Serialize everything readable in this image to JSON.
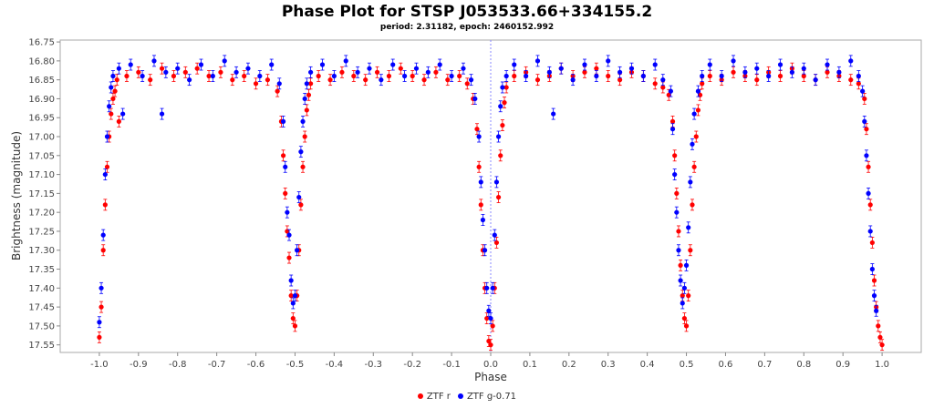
{
  "chart_data": {
    "type": "scatter",
    "title": "Phase Plot for STSP J053533.66+334155.2",
    "subtitle": "period: 2.31182, epoch: 2460152.992",
    "xlabel": "Phase",
    "ylabel": "Brightness (magnitude)",
    "xlim": [
      -1.1,
      1.1
    ],
    "ylim": [
      17.57,
      16.745
    ],
    "y_inverted": true,
    "x_ticks": [
      "-1.0",
      "-0.9",
      "-0.8",
      "-0.7",
      "-0.6",
      "-0.5",
      "-0.4",
      "-0.3",
      "-0.2",
      "-0.1",
      "0.0",
      "0.1",
      "0.2",
      "0.3",
      "0.4",
      "0.5",
      "0.6",
      "0.7",
      "0.8",
      "0.9",
      "1.0"
    ],
    "y_ticks": [
      "16.75",
      "16.80",
      "16.85",
      "16.90",
      "16.95",
      "17.00",
      "17.05",
      "17.10",
      "17.15",
      "17.20",
      "17.25",
      "17.30",
      "17.35",
      "17.40",
      "17.45",
      "17.50",
      "17.55"
    ],
    "vertical_marker_x": 0.0,
    "grid": false,
    "legend_position": "bottom-center",
    "series": [
      {
        "name": "ZTF r",
        "color": "#ff0000",
        "points": [
          [
            -1.0,
            17.53
          ],
          [
            -0.995,
            17.45
          ],
          [
            -0.99,
            17.3
          ],
          [
            -0.985,
            17.18
          ],
          [
            -0.98,
            17.08
          ],
          [
            -0.975,
            17.0
          ],
          [
            -0.97,
            16.94
          ],
          [
            -0.965,
            16.9
          ],
          [
            -0.96,
            16.88
          ],
          [
            -0.955,
            16.85
          ],
          [
            -0.95,
            16.96
          ],
          [
            -0.93,
            16.84
          ],
          [
            -0.9,
            16.83
          ],
          [
            -0.87,
            16.85
          ],
          [
            -0.84,
            16.82
          ],
          [
            -0.81,
            16.84
          ],
          [
            -0.78,
            16.83
          ],
          [
            -0.75,
            16.82
          ],
          [
            -0.72,
            16.84
          ],
          [
            -0.69,
            16.83
          ],
          [
            -0.66,
            16.85
          ],
          [
            -0.63,
            16.84
          ],
          [
            -0.6,
            16.86
          ],
          [
            -0.57,
            16.85
          ],
          [
            -0.545,
            16.88
          ],
          [
            -0.535,
            16.96
          ],
          [
            -0.53,
            17.05
          ],
          [
            -0.525,
            17.15
          ],
          [
            -0.52,
            17.25
          ],
          [
            -0.515,
            17.32
          ],
          [
            -0.51,
            17.42
          ],
          [
            -0.505,
            17.48
          ],
          [
            -0.5,
            17.5
          ],
          [
            -0.495,
            17.42
          ],
          [
            -0.49,
            17.3
          ],
          [
            -0.485,
            17.18
          ],
          [
            -0.48,
            17.08
          ],
          [
            -0.475,
            17.0
          ],
          [
            -0.47,
            16.93
          ],
          [
            -0.465,
            16.89
          ],
          [
            -0.46,
            16.86
          ],
          [
            -0.44,
            16.84
          ],
          [
            -0.41,
            16.85
          ],
          [
            -0.38,
            16.83
          ],
          [
            -0.35,
            16.84
          ],
          [
            -0.32,
            16.85
          ],
          [
            -0.29,
            16.83
          ],
          [
            -0.26,
            16.84
          ],
          [
            -0.23,
            16.82
          ],
          [
            -0.2,
            16.84
          ],
          [
            -0.17,
            16.85
          ],
          [
            -0.14,
            16.83
          ],
          [
            -0.11,
            16.85
          ],
          [
            -0.08,
            16.84
          ],
          [
            -0.06,
            16.86
          ],
          [
            -0.045,
            16.9
          ],
          [
            -0.035,
            16.98
          ],
          [
            -0.03,
            17.08
          ],
          [
            -0.025,
            17.18
          ],
          [
            -0.02,
            17.3
          ],
          [
            -0.015,
            17.4
          ],
          [
            -0.01,
            17.48
          ],
          [
            -0.005,
            17.54
          ],
          [
            0.0,
            17.55
          ],
          [
            0.005,
            17.5
          ],
          [
            0.01,
            17.4
          ],
          [
            0.015,
            17.28
          ],
          [
            0.02,
            17.16
          ],
          [
            0.025,
            17.05
          ],
          [
            0.03,
            16.97
          ],
          [
            0.035,
            16.91
          ],
          [
            0.04,
            16.87
          ],
          [
            0.06,
            16.84
          ],
          [
            0.09,
            16.83
          ],
          [
            0.12,
            16.85
          ],
          [
            0.15,
            16.84
          ],
          [
            0.18,
            16.82
          ],
          [
            0.21,
            16.84
          ],
          [
            0.24,
            16.83
          ],
          [
            0.27,
            16.82
          ],
          [
            0.3,
            16.84
          ],
          [
            0.33,
            16.85
          ],
          [
            0.36,
            16.83
          ],
          [
            0.39,
            16.84
          ],
          [
            0.42,
            16.86
          ],
          [
            0.44,
            16.87
          ],
          [
            0.455,
            16.89
          ],
          [
            0.465,
            16.96
          ],
          [
            0.47,
            17.05
          ],
          [
            0.475,
            17.15
          ],
          [
            0.48,
            17.25
          ],
          [
            0.485,
            17.34
          ],
          [
            0.49,
            17.42
          ],
          [
            0.495,
            17.48
          ],
          [
            0.5,
            17.5
          ],
          [
            0.505,
            17.42
          ],
          [
            0.51,
            17.3
          ],
          [
            0.515,
            17.18
          ],
          [
            0.52,
            17.08
          ],
          [
            0.525,
            17.0
          ],
          [
            0.53,
            16.93
          ],
          [
            0.535,
            16.89
          ],
          [
            0.54,
            16.86
          ],
          [
            0.56,
            16.84
          ],
          [
            0.59,
            16.85
          ],
          [
            0.62,
            16.83
          ],
          [
            0.65,
            16.84
          ],
          [
            0.68,
            16.85
          ],
          [
            0.71,
            16.83
          ],
          [
            0.74,
            16.84
          ],
          [
            0.77,
            16.82
          ],
          [
            0.8,
            16.84
          ],
          [
            0.83,
            16.85
          ],
          [
            0.86,
            16.83
          ],
          [
            0.89,
            16.84
          ],
          [
            0.92,
            16.85
          ],
          [
            0.94,
            16.86
          ],
          [
            0.955,
            16.9
          ],
          [
            0.96,
            16.98
          ],
          [
            0.965,
            17.08
          ],
          [
            0.97,
            17.18
          ],
          [
            0.975,
            17.28
          ],
          [
            0.98,
            17.38
          ],
          [
            0.985,
            17.45
          ],
          [
            0.99,
            17.5
          ],
          [
            0.995,
            17.53
          ],
          [
            1.0,
            17.55
          ]
        ]
      },
      {
        "name": "ZTF g-0.71",
        "color": "#0000ff",
        "points": [
          [
            -1.0,
            17.49
          ],
          [
            -0.995,
            17.4
          ],
          [
            -0.99,
            17.26
          ],
          [
            -0.985,
            17.1
          ],
          [
            -0.98,
            17.0
          ],
          [
            -0.975,
            16.92
          ],
          [
            -0.97,
            16.87
          ],
          [
            -0.965,
            16.84
          ],
          [
            -0.95,
            16.82
          ],
          [
            -0.94,
            16.94
          ],
          [
            -0.92,
            16.81
          ],
          [
            -0.89,
            16.84
          ],
          [
            -0.86,
            16.8
          ],
          [
            -0.84,
            16.94
          ],
          [
            -0.83,
            16.83
          ],
          [
            -0.8,
            16.82
          ],
          [
            -0.77,
            16.85
          ],
          [
            -0.74,
            16.81
          ],
          [
            -0.71,
            16.84
          ],
          [
            -0.68,
            16.8
          ],
          [
            -0.65,
            16.83
          ],
          [
            -0.62,
            16.82
          ],
          [
            -0.59,
            16.84
          ],
          [
            -0.56,
            16.81
          ],
          [
            -0.54,
            16.86
          ],
          [
            -0.53,
            16.96
          ],
          [
            -0.525,
            17.08
          ],
          [
            -0.52,
            17.2
          ],
          [
            -0.515,
            17.26
          ],
          [
            -0.51,
            17.38
          ],
          [
            -0.505,
            17.44
          ],
          [
            -0.5,
            17.42
          ],
          [
            -0.495,
            17.3
          ],
          [
            -0.49,
            17.16
          ],
          [
            -0.485,
            17.04
          ],
          [
            -0.48,
            16.96
          ],
          [
            -0.475,
            16.9
          ],
          [
            -0.47,
            16.86
          ],
          [
            -0.46,
            16.83
          ],
          [
            -0.43,
            16.81
          ],
          [
            -0.4,
            16.84
          ],
          [
            -0.37,
            16.8
          ],
          [
            -0.34,
            16.83
          ],
          [
            -0.31,
            16.82
          ],
          [
            -0.28,
            16.85
          ],
          [
            -0.25,
            16.81
          ],
          [
            -0.22,
            16.84
          ],
          [
            -0.19,
            16.82
          ],
          [
            -0.16,
            16.83
          ],
          [
            -0.13,
            16.81
          ],
          [
            -0.1,
            16.84
          ],
          [
            -0.07,
            16.82
          ],
          [
            -0.05,
            16.85
          ],
          [
            -0.04,
            16.9
          ],
          [
            -0.03,
            17.0
          ],
          [
            -0.025,
            17.12
          ],
          [
            -0.02,
            17.22
          ],
          [
            -0.015,
            17.3
          ],
          [
            -0.01,
            17.4
          ],
          [
            -0.005,
            17.46
          ],
          [
            0.0,
            17.48
          ],
          [
            0.005,
            17.4
          ],
          [
            0.01,
            17.26
          ],
          [
            0.015,
            17.12
          ],
          [
            0.02,
            17.0
          ],
          [
            0.025,
            16.92
          ],
          [
            0.03,
            16.87
          ],
          [
            0.04,
            16.84
          ],
          [
            0.06,
            16.81
          ],
          [
            0.09,
            16.84
          ],
          [
            0.12,
            16.8
          ],
          [
            0.15,
            16.83
          ],
          [
            0.16,
            16.94
          ],
          [
            0.18,
            16.82
          ],
          [
            0.21,
            16.85
          ],
          [
            0.24,
            16.81
          ],
          [
            0.27,
            16.84
          ],
          [
            0.3,
            16.8
          ],
          [
            0.33,
            16.83
          ],
          [
            0.36,
            16.82
          ],
          [
            0.39,
            16.84
          ],
          [
            0.42,
            16.81
          ],
          [
            0.44,
            16.85
          ],
          [
            0.46,
            16.88
          ],
          [
            0.465,
            16.98
          ],
          [
            0.47,
            17.1
          ],
          [
            0.475,
            17.2
          ],
          [
            0.48,
            17.3
          ],
          [
            0.485,
            17.38
          ],
          [
            0.49,
            17.44
          ],
          [
            0.495,
            17.4
          ],
          [
            0.5,
            17.34
          ],
          [
            0.505,
            17.24
          ],
          [
            0.51,
            17.12
          ],
          [
            0.515,
            17.02
          ],
          [
            0.52,
            16.94
          ],
          [
            0.53,
            16.88
          ],
          [
            0.54,
            16.84
          ],
          [
            0.56,
            16.81
          ],
          [
            0.59,
            16.84
          ],
          [
            0.62,
            16.8
          ],
          [
            0.65,
            16.83
          ],
          [
            0.68,
            16.82
          ],
          [
            0.71,
            16.84
          ],
          [
            0.74,
            16.81
          ],
          [
            0.77,
            16.83
          ],
          [
            0.8,
            16.82
          ],
          [
            0.83,
            16.85
          ],
          [
            0.86,
            16.81
          ],
          [
            0.89,
            16.83
          ],
          [
            0.92,
            16.8
          ],
          [
            0.94,
            16.84
          ],
          [
            0.95,
            16.88
          ],
          [
            0.955,
            16.96
          ],
          [
            0.96,
            17.05
          ],
          [
            0.965,
            17.15
          ],
          [
            0.97,
            17.25
          ],
          [
            0.975,
            17.35
          ],
          [
            0.98,
            17.42
          ],
          [
            0.985,
            17.46
          ]
        ]
      }
    ]
  }
}
